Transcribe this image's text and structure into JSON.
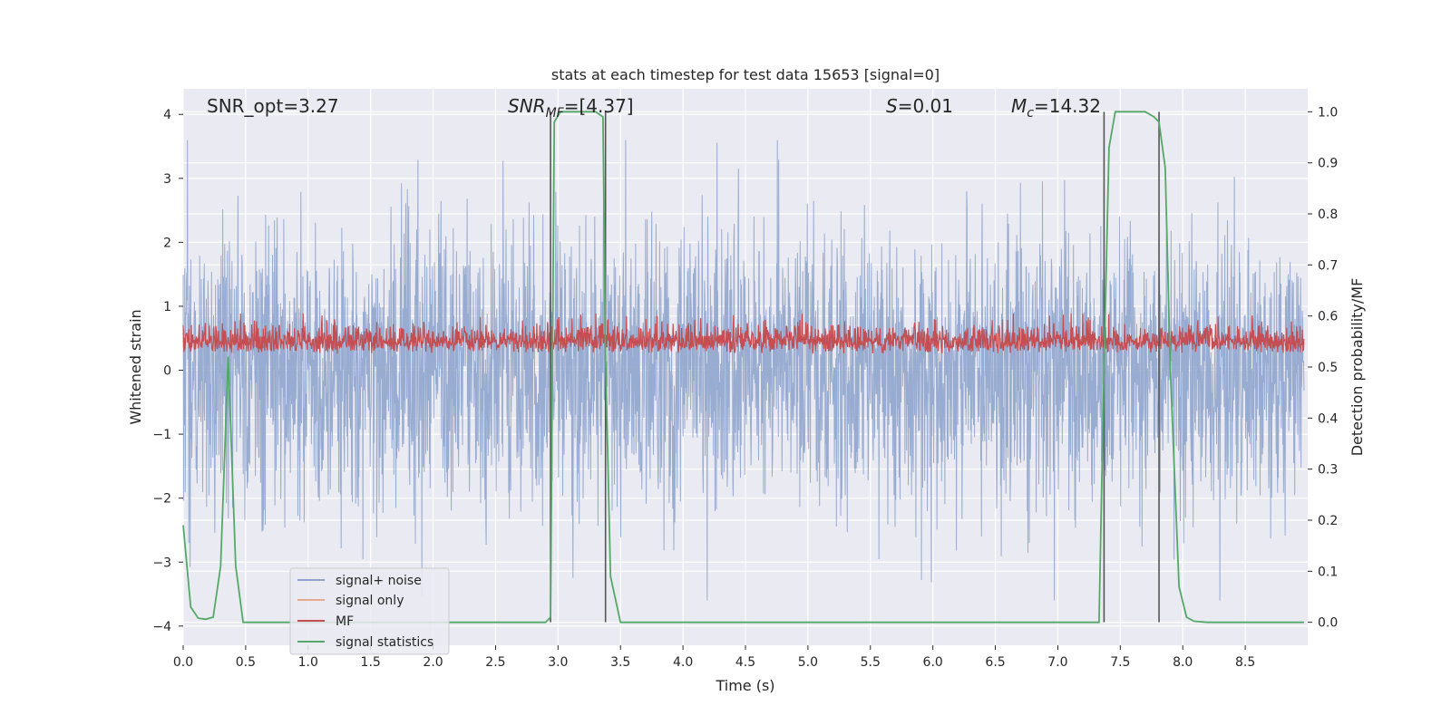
{
  "chart_data": {
    "type": "line",
    "title": "stats at each timestep for test data 15653 [signal=0]",
    "xlabel": "Time (s)",
    "ylabel_left": "Whitened strain",
    "ylabel_right": "Detection probability/MF",
    "xlim": [
      0.0,
      9.0
    ],
    "ylim_left": [
      -4.3,
      4.4
    ],
    "ylim_right": [
      -0.045,
      1.045
    ],
    "xticks": [
      0.0,
      0.5,
      1.0,
      1.5,
      2.0,
      2.5,
      3.0,
      3.5,
      4.0,
      4.5,
      5.0,
      5.5,
      6.0,
      6.5,
      7.0,
      7.5,
      8.0,
      8.5
    ],
    "xtick_labels": [
      "0.0",
      "0.5",
      "1.0",
      "1.5",
      "2.0",
      "2.5",
      "3.0",
      "3.5",
      "4.0",
      "4.5",
      "5.0",
      "5.5",
      "6.0",
      "6.5",
      "7.0",
      "7.5",
      "8.0",
      "8.5"
    ],
    "yticks_left": [
      -4,
      -3,
      -2,
      -1,
      0,
      1,
      2,
      3,
      4
    ],
    "ytick_labels_left": [
      "−4",
      "−3",
      "−2",
      "−1",
      "0",
      "1",
      "2",
      "3",
      "4"
    ],
    "yticks_right": [
      0.0,
      0.1,
      0.2,
      0.3,
      0.4,
      0.5,
      0.6,
      0.7,
      0.8,
      0.9,
      1.0
    ],
    "ytick_labels_right": [
      "0.0",
      "0.1",
      "0.2",
      "0.3",
      "0.4",
      "0.5",
      "0.6",
      "0.7",
      "0.8",
      "0.9",
      "1.0"
    ],
    "grid": true,
    "legend_placement": "lower-left",
    "annotations": {
      "snr_opt": "SNR_opt=3.27",
      "snr_mf_sym": "SNR",
      "snr_mf_sub": "MF",
      "snr_mf_val": "=[4.37]",
      "s_sym": "S",
      "s_val": "=0.01",
      "mc_sym": "M",
      "mc_sub": "c",
      "mc_val": "=14.32"
    },
    "vertical_lines_x": [
      2.94,
      3.38,
      7.37,
      7.81
    ],
    "series": [
      {
        "name": "signal+ noise",
        "color": "#8fa4cc",
        "axis": "left",
        "description": "noise-like whitened strain spanning roughly -3.5 to 3.5"
      },
      {
        "name": "signal only",
        "color": "#e9a98e",
        "axis": "left",
        "x": [],
        "y": []
      },
      {
        "name": "MF",
        "color": "#c44e52",
        "axis": "right",
        "description": "matched-filter output fluctuating between about 0.50 and 0.60"
      },
      {
        "name": "signal statistics",
        "color": "#55a868",
        "axis": "right",
        "x": [
          0.0,
          0.06,
          0.12,
          0.18,
          0.24,
          0.3,
          0.36,
          0.42,
          0.48,
          0.55,
          1.0,
          2.0,
          2.9,
          2.94,
          2.97,
          3.02,
          3.1,
          3.3,
          3.36,
          3.38,
          3.42,
          3.5,
          3.6,
          4.0,
          5.0,
          6.0,
          7.0,
          7.33,
          7.37,
          7.41,
          7.46,
          7.7,
          7.77,
          7.81,
          7.86,
          7.9,
          7.97,
          8.03,
          8.09,
          8.2,
          8.97
        ],
        "y": [
          0.19,
          0.03,
          0.008,
          0.006,
          0.01,
          0.11,
          0.52,
          0.11,
          0.0,
          0.0,
          0.0,
          0.0,
          0.0,
          0.01,
          0.98,
          1.0,
          1.0,
          1.0,
          0.99,
          0.52,
          0.09,
          0.0,
          0.0,
          0.0,
          0.0,
          0.0,
          0.0,
          0.0,
          0.5,
          0.93,
          1.0,
          1.0,
          0.99,
          0.98,
          0.89,
          0.5,
          0.07,
          0.01,
          0.002,
          0.0,
          0.0
        ]
      }
    ]
  }
}
